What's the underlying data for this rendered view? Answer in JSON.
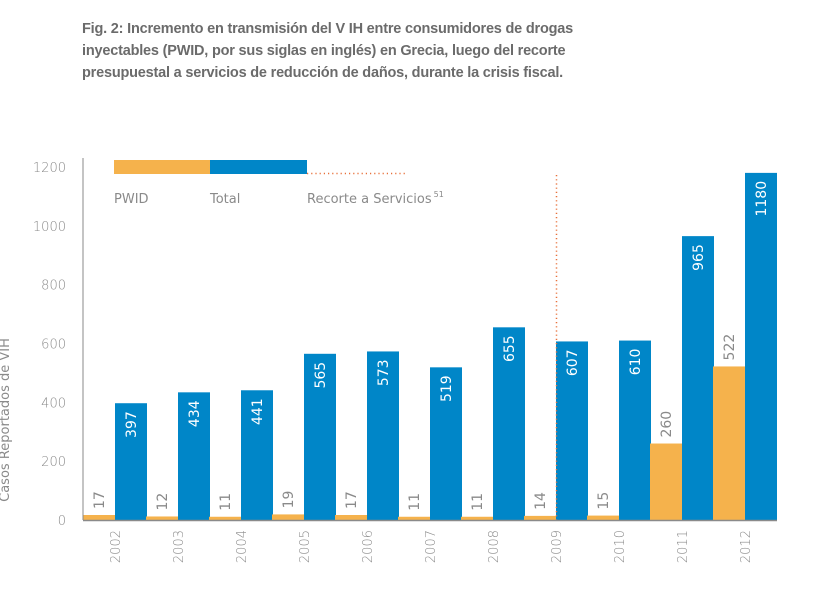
{
  "title_lines": [
    "Fig. 2: Incremento en transmisión del V IH entre consumidores de drogas",
    "inyectables (PWID, por sus siglas en inglés) en Grecia, luego del recorte",
    "presupuestal a servicios de reducción de daños, durante la crisis fiscal."
  ],
  "colors": {
    "pwid": "#f5b24c",
    "total": "#0086c8",
    "cut_line": "#e8703a",
    "axis": "#8a8a8a",
    "text": "#8a8a8a"
  },
  "chart_data": {
    "type": "bar",
    "title": "Fig. 2: Incremento en transmisión del V IH entre consumidores de drogas inyectables (PWID, por sus siglas en inglés) en Grecia, luego del recorte presupuestal a servicios de reducción de daños, durante la crisis fiscal.",
    "xlabel": "",
    "ylabel": "Casos Reportados de VIH",
    "ylim": [
      0,
      1200
    ],
    "yticks": [
      0,
      200,
      400,
      600,
      800,
      1000,
      1200
    ],
    "grid": false,
    "legend_position": "top-left",
    "categories": [
      "2002",
      "2003",
      "2004",
      "2005",
      "2006",
      "2007",
      "2008",
      "2009",
      "2010",
      "2011",
      "2012"
    ],
    "series": [
      {
        "name": "PWID",
        "values": [
          17,
          12,
          11,
          19,
          17,
          11,
          11,
          14,
          15,
          260,
          522
        ]
      },
      {
        "name": "Total",
        "values": [
          397,
          434,
          441,
          565,
          573,
          519,
          655,
          607,
          610,
          965,
          1180
        ]
      }
    ],
    "annotations": [
      {
        "type": "vertical-dotted-line",
        "label": "Recorte a Servicios",
        "superscript": "51",
        "at_category": "2009",
        "position": "before-total-bar"
      }
    ],
    "legend": [
      {
        "name": "PWID",
        "label": "PWID"
      },
      {
        "name": "Total",
        "label": "Total"
      },
      {
        "name": "cut",
        "label": "Recorte a Servicios",
        "superscript": "51"
      }
    ]
  }
}
